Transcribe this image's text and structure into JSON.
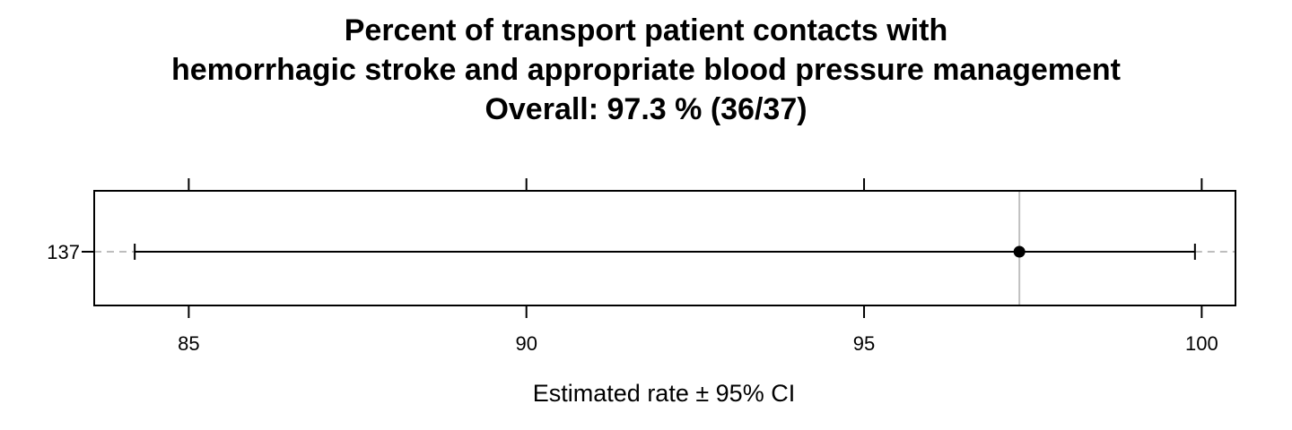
{
  "chart_data": {
    "type": "dot-interval",
    "title_lines": [
      "Percent of transport patient contacts with",
      "hemorrhagic stroke and appropriate blood pressure management",
      "Overall:  97.3 %  (36/37)"
    ],
    "xlabel": "Estimated rate ±  95% CI",
    "xlim": [
      83.6,
      100.5
    ],
    "xticks": [
      85,
      90,
      95,
      100
    ],
    "categories": [
      "137"
    ],
    "points": [
      {
        "label": "137",
        "estimate": 97.3,
        "ci_low": 84.2,
        "ci_high": 99.9
      }
    ],
    "reference_line": 97.3,
    "numerator": 36,
    "denominator": 37,
    "colors": {
      "point": "#000000",
      "ci_line": "#000000",
      "reference_line": "#c0c0c0",
      "row_guide": "#bdbdbd",
      "frame": "#000000"
    }
  }
}
